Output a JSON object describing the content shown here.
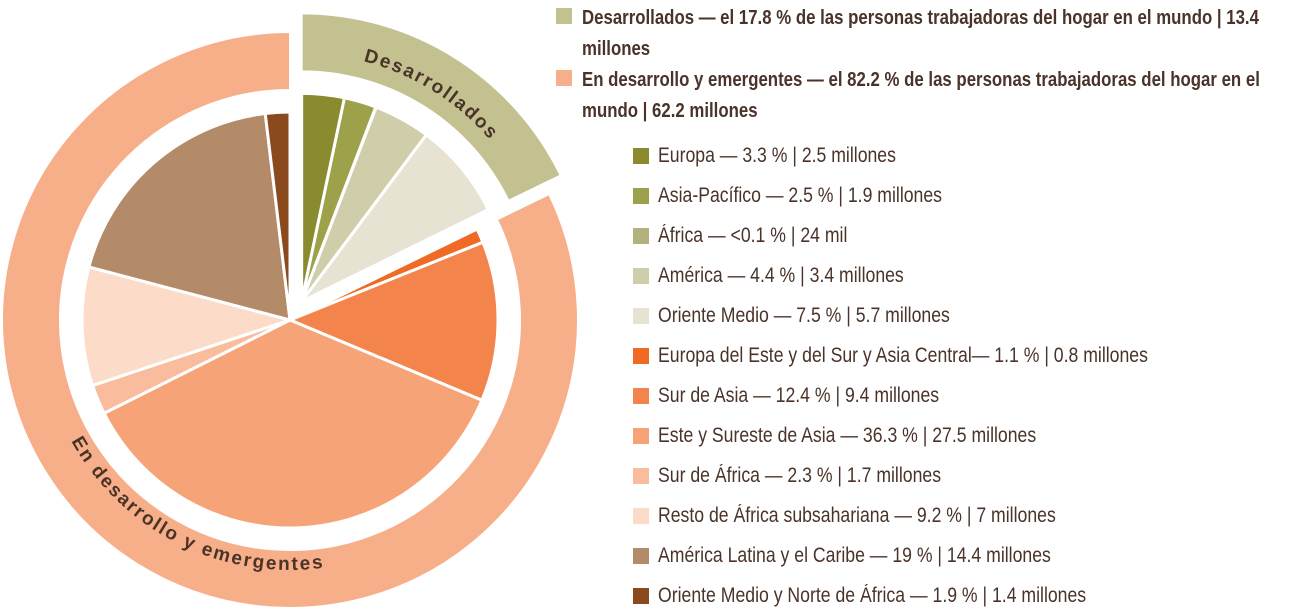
{
  "chart_data": {
    "type": "sunburst",
    "groups": [
      {
        "name": "Desarrollados",
        "legend": "Desarrollados — el 17.8 % de las personas trabajadoras del hogar en el mundo | 13.4 millones",
        "value": 17.8,
        "color": "#c4c190",
        "segments": [
          {
            "legend": "Europa — 3.3 % | 2.5 millones",
            "value": 3.3,
            "color": "#8a8a2e"
          },
          {
            "legend": "Asia-Pacífico — 2.5 % | 1.9 millones",
            "value": 2.5,
            "color": "#9ca14a"
          },
          {
            "legend": "África — <0.1 % | 24 mil",
            "value": 0.03,
            "color": "#b3b27c"
          },
          {
            "legend": "América — 4.4 % | 3.4 millones",
            "value": 4.4,
            "color": "#d0cdab"
          },
          {
            "legend": "Oriente Medio — 7.5 % | 5.7 millones",
            "value": 7.5,
            "color": "#e6e3d2"
          }
        ]
      },
      {
        "name": "En desarrollo y emergentes",
        "legend": "En desarrollo y emergentes — el 82.2 % de las personas trabajadoras del hogar en el mundo | 62.2 millones",
        "value": 82.2,
        "color": "#f7af89",
        "segments": [
          {
            "legend": "Europa del Este y del Sur y Asia Central— 1.1 % | 0.8 millones",
            "value": 1.1,
            "color": "#ee6a25"
          },
          {
            "legend": "Sur de Asia — 12.4 % | 9.4 millones",
            "value": 12.4,
            "color": "#f3854c"
          },
          {
            "legend": "Este y Sureste de Asia — 36.3 % | 27.5 millones",
            "value": 36.3,
            "color": "#f6a377"
          },
          {
            "legend": "Sur de África — 2.3 % | 1.7 millones",
            "value": 2.3,
            "color": "#f9bc9c"
          },
          {
            "legend": "Resto de África subsahariana — 9.2 % | 7 millones",
            "value": 9.2,
            "color": "#fcdcc8"
          },
          {
            "legend": "América Latina y el Caribe — 19 % | 14.4 millones",
            "value": 19,
            "color": "#b48b69"
          },
          {
            "legend": "Oriente Medio y Norte de África — 1.9 % | 1.4 millones",
            "value": 1.9,
            "color": "#8a4a1d"
          }
        ]
      }
    ]
  }
}
